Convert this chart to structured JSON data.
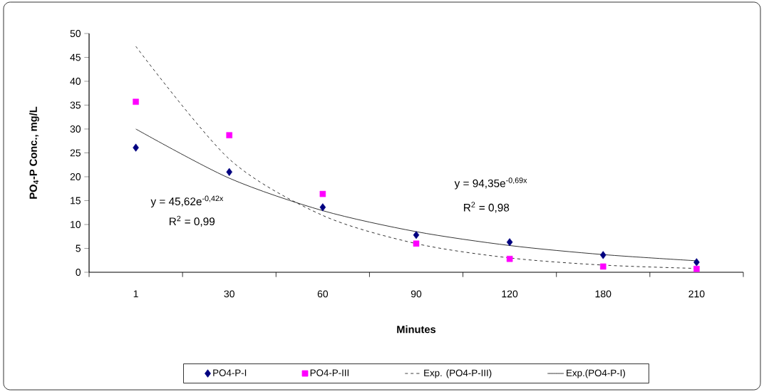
{
  "chart_data": {
    "type": "scatter",
    "xlabel": "Minutes",
    "ylabel": "**PO$_{4}$-P Conc., mg/L**",
    "categories": [
      "1",
      "30",
      "60",
      "90",
      "120",
      "180",
      "210"
    ],
    "ylim": [
      0,
      50
    ],
    "yticks": [
      0,
      5,
      10,
      15,
      20,
      25,
      30,
      35,
      40,
      45,
      50
    ],
    "legend": "bottom",
    "series": [
      {
        "name": "PO4-P-I",
        "marker": "diamond",
        "color": "#000080",
        "values": [
          26.1,
          21.0,
          13.6,
          7.8,
          6.3,
          3.6,
          2.1
        ]
      },
      {
        "name": "PO4-P-III",
        "marker": "square",
        "color": "#ff00ff",
        "values": [
          35.7,
          28.7,
          16.4,
          6.0,
          2.8,
          1.2,
          0.7
        ]
      },
      {
        "name": "Exp. (PO4-P-III)",
        "type": "line",
        "line_style": "dashed",
        "color": "#000000",
        "values": [
          47.3,
          23.7,
          11.9,
          6.0,
          3.0,
          1.5,
          0.8
        ]
      },
      {
        "name": "Exp.(PO4-P-I)",
        "type": "line",
        "line_style": "solid",
        "color": "#000000",
        "values": [
          30.0,
          19.7,
          12.9,
          8.5,
          5.6,
          3.7,
          2.4
        ]
      }
    ],
    "annotations": [
      "y = 45,62e$^{-0,42x}$",
      "R$^{2}$ = 0,99",
      "y = 94,35e$^{-0,69x}$",
      "R$^{2}$ = 0,98"
    ]
  }
}
